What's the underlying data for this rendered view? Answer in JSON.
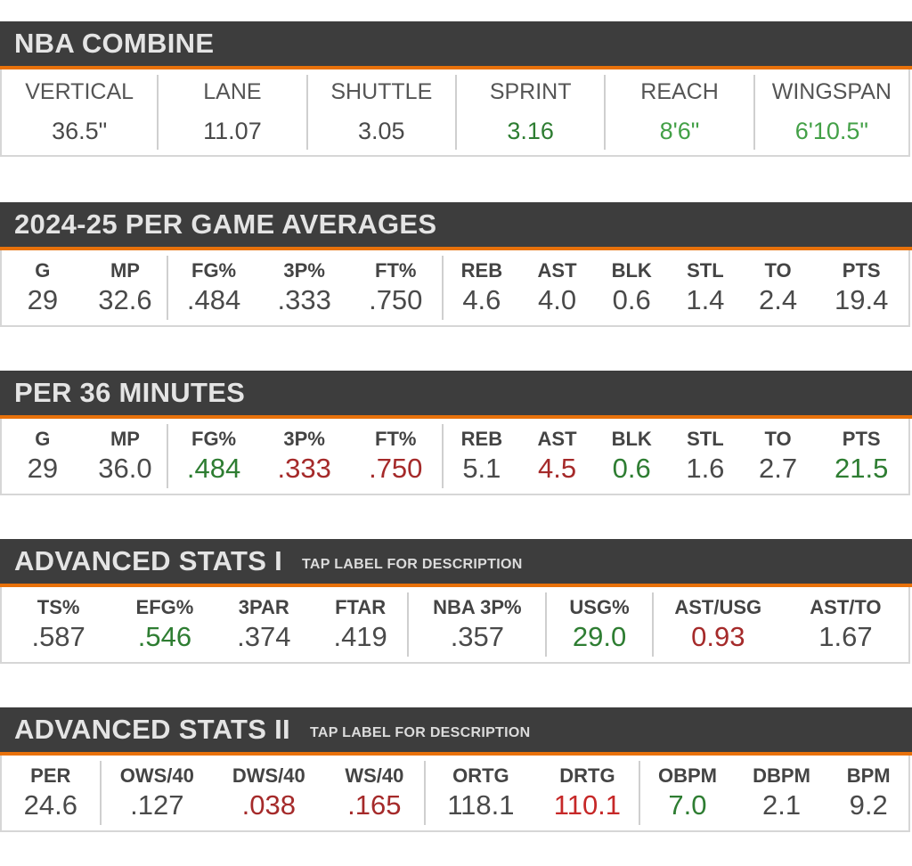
{
  "combine": {
    "title": "NBA COMBINE",
    "stats": [
      {
        "label": "VERTICAL",
        "value": "36.5\"",
        "color": ""
      },
      {
        "label": "LANE",
        "value": "11.07",
        "color": ""
      },
      {
        "label": "SHUTTLE",
        "value": "3.05",
        "color": ""
      },
      {
        "label": "SPRINT",
        "value": "3.16",
        "color": "green"
      },
      {
        "label": "REACH",
        "value": "8'6\"",
        "color": "lgreen"
      },
      {
        "label": "WINGSPAN",
        "value": "6'10.5\"",
        "color": "lgreen"
      }
    ]
  },
  "per_game": {
    "title": "2024-25 PER GAME AVERAGES",
    "stats": [
      {
        "label": "G",
        "value": "29",
        "color": ""
      },
      {
        "label": "MP",
        "value": "32.6",
        "color": ""
      },
      {
        "label": "FG%",
        "value": ".484",
        "color": ""
      },
      {
        "label": "3P%",
        "value": ".333",
        "color": ""
      },
      {
        "label": "FT%",
        "value": ".750",
        "color": ""
      },
      {
        "label": "REB",
        "value": "4.6",
        "color": ""
      },
      {
        "label": "AST",
        "value": "4.0",
        "color": ""
      },
      {
        "label": "BLK",
        "value": "0.6",
        "color": ""
      },
      {
        "label": "STL",
        "value": "1.4",
        "color": ""
      },
      {
        "label": "TO",
        "value": "2.4",
        "color": ""
      },
      {
        "label": "PTS",
        "value": "19.4",
        "color": ""
      }
    ]
  },
  "per36": {
    "title": "PER 36 MINUTES",
    "stats": [
      {
        "label": "G",
        "value": "29",
        "color": ""
      },
      {
        "label": "MP",
        "value": "36.0",
        "color": ""
      },
      {
        "label": "FG%",
        "value": ".484",
        "color": "green"
      },
      {
        "label": "3P%",
        "value": ".333",
        "color": "red"
      },
      {
        "label": "FT%",
        "value": ".750",
        "color": "red"
      },
      {
        "label": "REB",
        "value": "5.1",
        "color": ""
      },
      {
        "label": "AST",
        "value": "4.5",
        "color": "red"
      },
      {
        "label": "BLK",
        "value": "0.6",
        "color": "green"
      },
      {
        "label": "STL",
        "value": "1.6",
        "color": ""
      },
      {
        "label": "TO",
        "value": "2.7",
        "color": ""
      },
      {
        "label": "PTS",
        "value": "21.5",
        "color": "green"
      }
    ]
  },
  "adv1": {
    "title": "ADVANCED STATS I",
    "subtitle": "TAP LABEL FOR DESCRIPTION",
    "stats": [
      {
        "label": "TS%",
        "value": ".587",
        "color": ""
      },
      {
        "label": "EFG%",
        "value": ".546",
        "color": "green"
      },
      {
        "label": "3PAR",
        "value": ".374",
        "color": ""
      },
      {
        "label": "FTAR",
        "value": ".419",
        "color": ""
      },
      {
        "label": "NBA 3P%",
        "value": ".357",
        "color": ""
      },
      {
        "label": "USG%",
        "value": "29.0",
        "color": "green"
      },
      {
        "label": "AST/USG",
        "value": "0.93",
        "color": "red"
      },
      {
        "label": "AST/TO",
        "value": "1.67",
        "color": ""
      }
    ]
  },
  "adv2": {
    "title": "ADVANCED STATS II",
    "subtitle": "TAP LABEL FOR DESCRIPTION",
    "stats": [
      {
        "label": "PER",
        "value": "24.6",
        "color": ""
      },
      {
        "label": "OWS/40",
        "value": ".127",
        "color": ""
      },
      {
        "label": "DWS/40",
        "value": ".038",
        "color": "red"
      },
      {
        "label": "WS/40",
        "value": ".165",
        "color": "red"
      },
      {
        "label": "ORTG",
        "value": "118.1",
        "color": ""
      },
      {
        "label": "DRTG",
        "value": "110.1",
        "color": "lred"
      },
      {
        "label": "OBPM",
        "value": "7.0",
        "color": "green"
      },
      {
        "label": "DBPM",
        "value": "2.1",
        "color": ""
      },
      {
        "label": "BPM",
        "value": "9.2",
        "color": ""
      }
    ]
  }
}
